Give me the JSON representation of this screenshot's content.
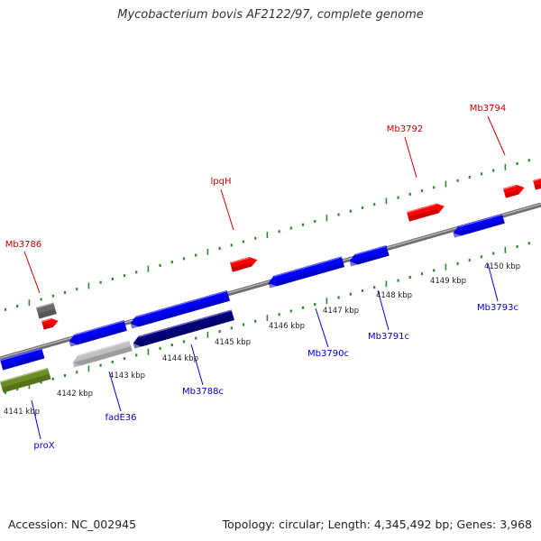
{
  "title": "Mycobacterium bovis AF2122/97, complete genome",
  "footer": {
    "accession": "Accession: NC_002945",
    "topology": "Topology: circular; Length: 4,345,492 bp; Genes: 3,968"
  },
  "colors": {
    "backbone": "#8c8c8c",
    "tick": "#2b8a2b",
    "plus_label": "#cc0000",
    "minus_label": "#0000cc",
    "scale_label": "#222222"
  },
  "scale": {
    "unit": "kbp",
    "labels": [
      "4141 kbp",
      "4142 kbp",
      "4143 kbp",
      "4144 kbp",
      "4145 kbp",
      "4146 kbp",
      "4147 kbp",
      "4148 kbp",
      "4149 kbp",
      "4150 kbp"
    ]
  },
  "genes_plus_strand": [
    {
      "name": "Mb3786",
      "color": "#ff0000"
    },
    {
      "name": "lpqH",
      "color": "#ff0000"
    },
    {
      "name": "Mb3792",
      "color": "#ff0000"
    },
    {
      "name": "Mb3794",
      "color": "#ff0000"
    }
  ],
  "genes_minus_strand": [
    {
      "name": "proX",
      "color": "#6b8e23"
    },
    {
      "name": "fadE36",
      "color": "#c0c0c0"
    },
    {
      "name": "Mb3788c",
      "color": "#000080"
    },
    {
      "name": "Mb3790c",
      "color": "#0000ff"
    },
    {
      "name": "Mb3791c",
      "color": "#0000ff"
    },
    {
      "name": "Mb3793c",
      "color": "#0000ff"
    }
  ]
}
